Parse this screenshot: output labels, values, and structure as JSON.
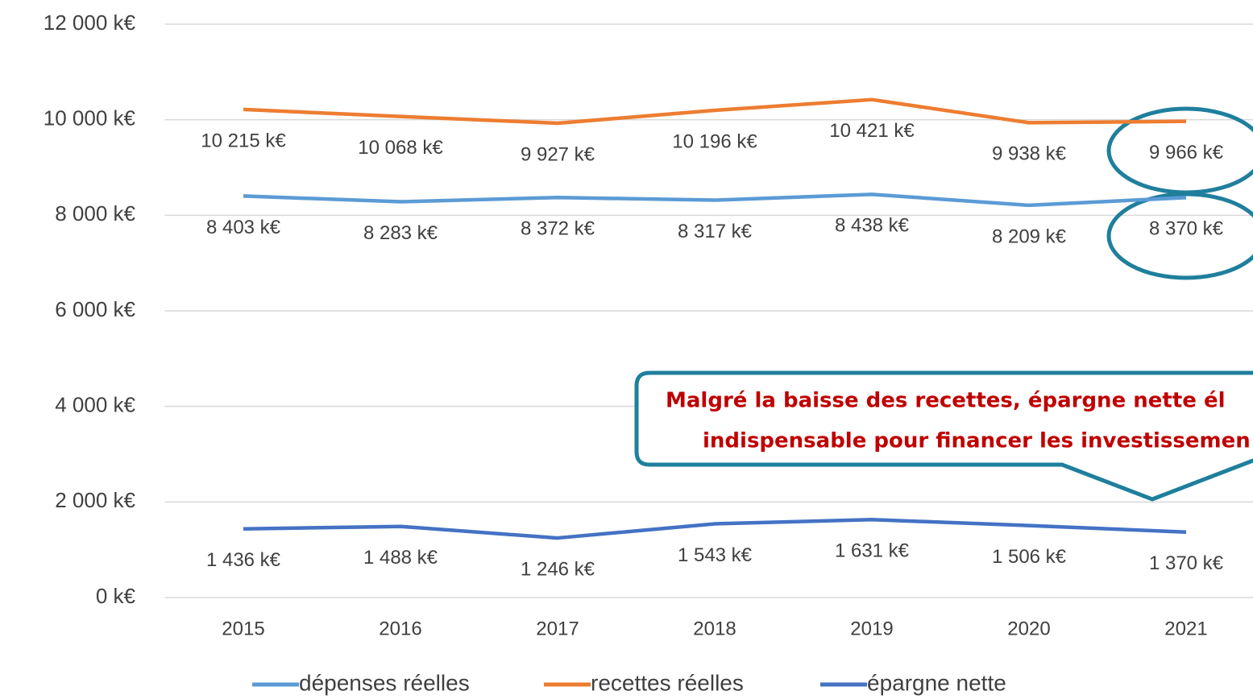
{
  "chart_data": {
    "type": "line",
    "categories": [
      "2015",
      "2016",
      "2017",
      "2018",
      "2019",
      "2020",
      "2021"
    ],
    "series": [
      {
        "name": "dépenses réelles",
        "color": "#5b9bd5",
        "values": [
          8403,
          8283,
          8372,
          8317,
          8438,
          8209,
          8370
        ],
        "value_labels": [
          "8 403  k€",
          "8 283  k€",
          "8 372  k€",
          "8 317  k€",
          "8 438  k€",
          "8 209  k€",
          "8 370  k€"
        ]
      },
      {
        "name": "recettes réelles",
        "color": "#ed7d31",
        "values": [
          10215,
          10068,
          9927,
          10196,
          10421,
          9938,
          9966
        ],
        "value_labels": [
          "10 215  k€",
          "10 068  k€",
          "9 927  k€",
          "10 196  k€",
          "10 421  k€",
          "9 938  k€",
          "9 966  k€"
        ]
      },
      {
        "name": "épargne nette",
        "color": "#4472c4",
        "values": [
          1436,
          1488,
          1246,
          1543,
          1631,
          1506,
          1370
        ],
        "value_labels": [
          "1 436  k€",
          "1 488  k€",
          "1 246  k€",
          "1 543  k€",
          "1 631  k€",
          "1 506  k€",
          "1 370  k€"
        ]
      }
    ],
    "ylim": [
      0,
      12000
    ],
    "yticks": [
      {
        "value": 0,
        "label": "0  k€"
      },
      {
        "value": 2000,
        "label": "2 000  k€"
      },
      {
        "value": 4000,
        "label": "4 000  k€"
      },
      {
        "value": 6000,
        "label": "6 000  k€"
      },
      {
        "value": 8000,
        "label": "8 000  k€"
      },
      {
        "value": 10000,
        "label": "10 000  k€"
      },
      {
        "value": 12000,
        "label": "12 000  k€"
      }
    ],
    "grid": true,
    "legend": "bottom",
    "annotations": [
      "Malgré la baisse des recettes, épargne nette él",
      "indispensable pour financer les investissemen"
    ]
  }
}
